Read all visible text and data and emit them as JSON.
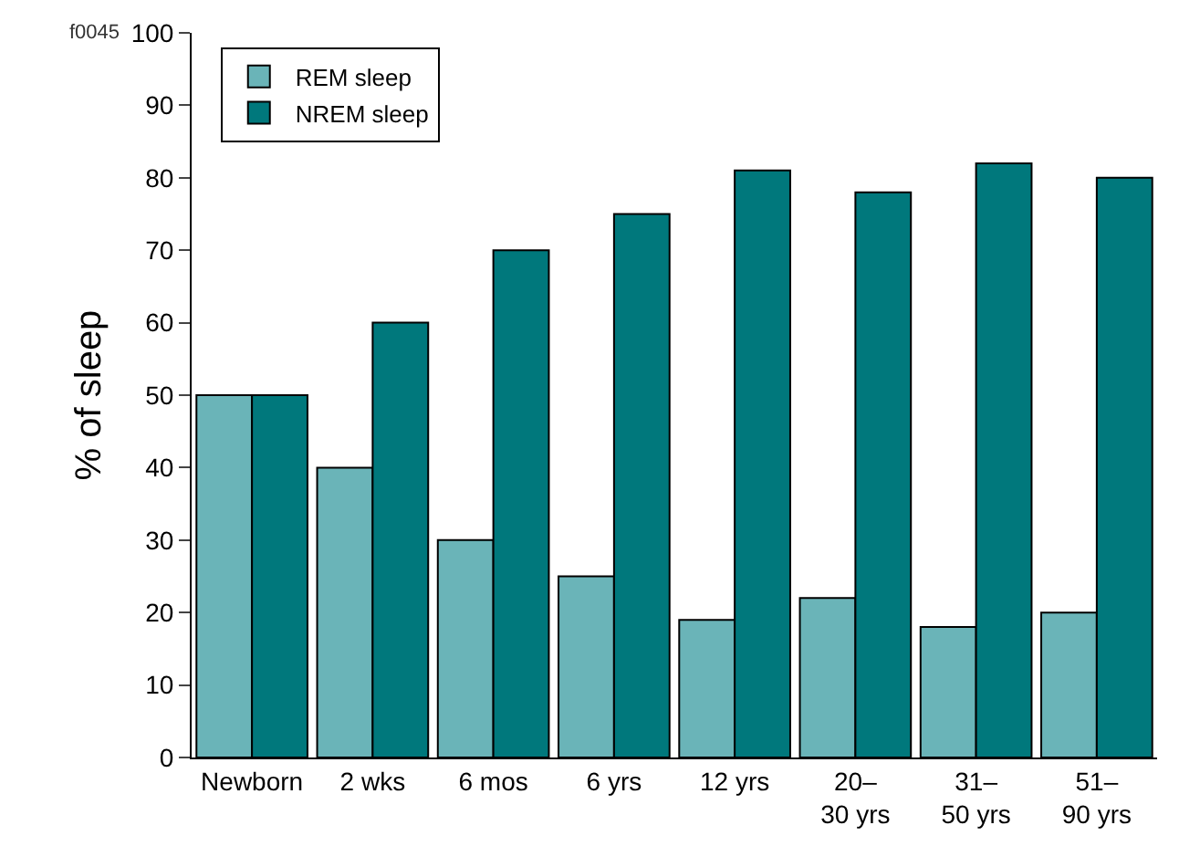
{
  "chart_data": {
    "type": "bar",
    "ylabel": "% of sleep",
    "categories": [
      "Newborn",
      "2 wks",
      "6 mos",
      "6 yrs",
      "12 yrs",
      "20–\n30 yrs",
      "31–\n50 yrs",
      "51–\n90 yrs"
    ],
    "series": [
      {
        "name": "REM sleep",
        "color": "#6ab4b8",
        "values": [
          50,
          40,
          30,
          25,
          19,
          22,
          18,
          20
        ]
      },
      {
        "name": "NREM sleep",
        "color": "#00787c",
        "values": [
          50,
          60,
          70,
          75,
          81,
          78,
          82,
          80
        ]
      }
    ],
    "ylim": [
      0,
      100
    ],
    "yticks": [
      0,
      10,
      20,
      30,
      40,
      50,
      60,
      70,
      80,
      90,
      100
    ],
    "grid": false,
    "legend": "top left",
    "annotations": [
      "f0045"
    ]
  }
}
